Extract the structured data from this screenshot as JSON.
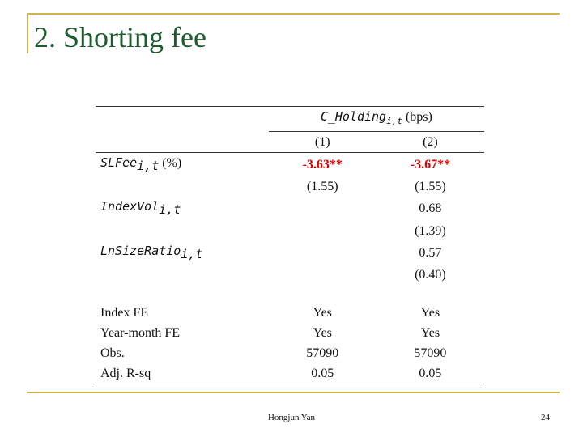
{
  "slide": {
    "title": "2. Shorting fee",
    "author": "Hongjun Yan",
    "page_number": "24"
  },
  "table": {
    "header": {
      "dep_var": "C_Holding",
      "dep_var_sub": "i,t",
      "dep_var_unit": "(bps)",
      "col1": "(1)",
      "col2": "(2)"
    },
    "rows": [
      {
        "var": "SLFee",
        "sub": "i,t",
        "suffix": "(%)",
        "c1": "-3.63**",
        "c2": "-3.67**",
        "c1_se": "(1.55)",
        "c2_se": "(1.55)"
      },
      {
        "var": "IndexVol",
        "sub": "i,t",
        "suffix": "",
        "c1": "",
        "c2": "0.68",
        "c1_se": "",
        "c2_se": "(1.39)"
      },
      {
        "var": "LnSizeRatio",
        "sub": "i,t",
        "suffix": "",
        "c1": "",
        "c2": "0.57",
        "c1_se": "",
        "c2_se": "(0.40)"
      }
    ],
    "stats": [
      {
        "label": "Index FE",
        "c1": "Yes",
        "c2": "Yes"
      },
      {
        "label": "Year-month FE",
        "c1": "Yes",
        "c2": "Yes"
      },
      {
        "label": "Obs.",
        "c1": "57090",
        "c2": "57090"
      },
      {
        "label": "Adj. R-sq",
        "c1": "0.05",
        "c2": "0.05"
      }
    ],
    "significant_color": "#e10000"
  }
}
